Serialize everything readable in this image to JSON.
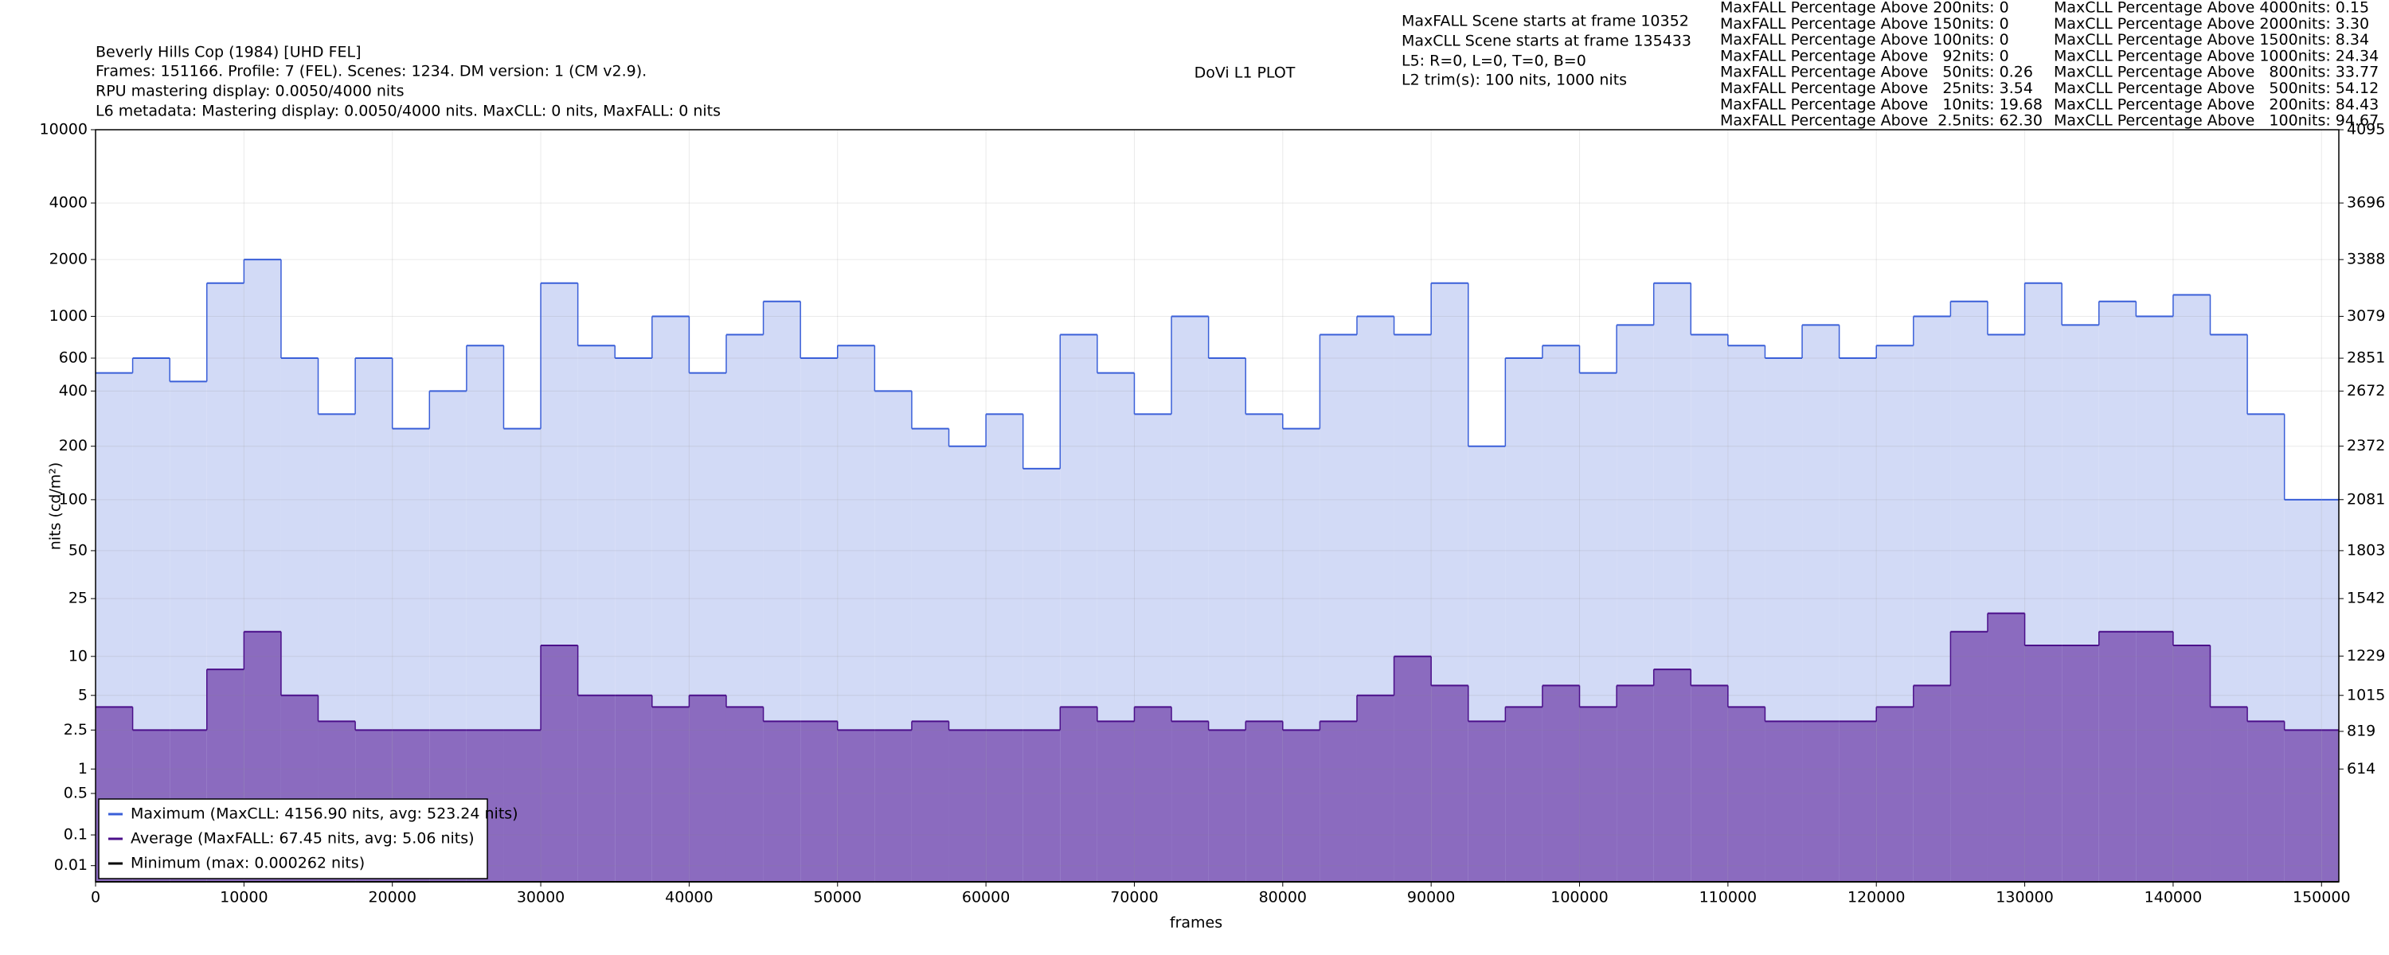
{
  "chart_data": {
    "type": "line",
    "title": "Beverly Hills Cop (1984) [UHD FEL]",
    "header_lines": [
      "Frames: 151166. Profile: 7 (FEL). Scenes: 1234. DM version: 1 (CM v2.9).",
      "RPU mastering display: 0.0050/4000 nits",
      "L6 metadata: Mastering display: 0.0050/4000 nits. MaxCLL: 0 nits, MaxFALL: 0 nits"
    ],
    "plot_label": "DoVi L1 PLOT",
    "scene_info": [
      "MaxFALL Scene starts at frame 10352",
      "MaxCLL Scene starts at frame 135433",
      "L5: R=0, L=0, T=0, B=0",
      "L2 trim(s): 100 nits, 1000 nits"
    ],
    "maxfall_stats": [
      "MaxFALL Percentage Above 200nits: 0",
      "MaxFALL Percentage Above 150nits: 0",
      "MaxFALL Percentage Above 100nits: 0",
      "MaxFALL Percentage Above   92nits: 0",
      "MaxFALL Percentage Above   50nits: 0.26",
      "MaxFALL Percentage Above   25nits: 3.54",
      "MaxFALL Percentage Above   10nits: 19.68",
      "MaxFALL Percentage Above  2.5nits: 62.30"
    ],
    "maxcll_stats": [
      "MaxCLL Percentage Above 4000nits: 0.15",
      "MaxCLL Percentage Above 2000nits: 3.30",
      "MaxCLL Percentage Above 1500nits: 8.34",
      "MaxCLL Percentage Above 1000nits: 24.34",
      "MaxCLL Percentage Above   800nits: 33.77",
      "MaxCLL Percentage Above   500nits: 54.12",
      "MaxCLL Percentage Above   200nits: 84.43",
      "MaxCLL Percentage Above   100nits: 94.67"
    ],
    "xlabel": "frames",
    "ylabel": "nits (cd/m²)",
    "x": [
      0,
      2500,
      5000,
      7500,
      10000,
      12500,
      15000,
      17500,
      20000,
      22500,
      25000,
      27500,
      30000,
      32500,
      35000,
      37500,
      40000,
      42500,
      45000,
      47500,
      50000,
      52500,
      55000,
      57500,
      60000,
      62500,
      65000,
      67500,
      70000,
      72500,
      75000,
      77500,
      80000,
      82500,
      85000,
      87500,
      90000,
      92500,
      95000,
      97500,
      100000,
      102500,
      105000,
      107500,
      110000,
      112500,
      115000,
      117500,
      120000,
      122500,
      125000,
      127500,
      130000,
      132500,
      135000,
      137500,
      140000,
      142500,
      145000,
      147500,
      150000
    ],
    "series": [
      {
        "name": "Maximum (MaxCLL: 4156.90 nits, avg: 523.24 nits)",
        "color": "#3a5fd8",
        "fill": "#d2daf6",
        "values": [
          500,
          600,
          450,
          1500,
          2000,
          600,
          300,
          600,
          250,
          400,
          700,
          250,
          1500,
          700,
          600,
          1000,
          500,
          800,
          1200,
          600,
          700,
          400,
          250,
          200,
          300,
          150,
          800,
          500,
          300,
          1000,
          600,
          300,
          250,
          800,
          1000,
          800,
          1500,
          200,
          600,
          700,
          500,
          900,
          1500,
          800,
          700,
          600,
          900,
          600,
          700,
          1000,
          1200,
          800,
          1500,
          900,
          1200,
          1000,
          1300,
          800,
          300,
          100,
          100
        ]
      },
      {
        "name": "Average (MaxFALL: 67.45 nits, avg: 5.06 nits)",
        "color": "#4b0f8a",
        "fill": "#8b6bbf",
        "values": [
          4,
          2.5,
          2.5,
          8,
          15,
          5,
          3,
          2.5,
          2.5,
          2.5,
          2.5,
          2.5,
          12,
          5,
          5,
          4,
          5,
          4,
          3,
          3,
          2.5,
          2.5,
          3,
          2.5,
          2.5,
          2.5,
          4,
          3,
          4,
          3,
          2.5,
          3,
          2.5,
          3,
          5,
          10,
          6,
          3,
          4,
          6,
          4,
          6,
          8,
          6,
          4,
          3,
          3,
          3,
          4,
          6,
          15,
          20,
          12,
          12,
          15,
          15,
          12,
          4,
          3,
          2.5,
          2.5
        ]
      },
      {
        "name": "Minimum (max: 0.000262 nits)",
        "color": "#000000",
        "fill": "none",
        "values": [
          0,
          0,
          0,
          0,
          0,
          0,
          0,
          0,
          0,
          0,
          0,
          0,
          0,
          0,
          0,
          0,
          0,
          0,
          0,
          0,
          0,
          0,
          0,
          0,
          0,
          0,
          0,
          0,
          0,
          0,
          0,
          0,
          0,
          0,
          0,
          0,
          0,
          0,
          0,
          0,
          0,
          0,
          0,
          0,
          0,
          0,
          0,
          0,
          0,
          0,
          0,
          0,
          0,
          0,
          0,
          0,
          0,
          0,
          0,
          0,
          0
        ]
      }
    ],
    "xlim": [
      0,
      151166
    ],
    "xticks": [
      0,
      10000,
      20000,
      30000,
      40000,
      50000,
      60000,
      70000,
      80000,
      90000,
      100000,
      110000,
      120000,
      130000,
      140000,
      150000
    ],
    "ylim": [
      0,
      10000
    ],
    "yscale": "pq",
    "yticks": [
      0.01,
      0.1,
      0.5,
      1,
      2.5,
      5,
      10,
      25,
      50,
      100,
      200,
      400,
      600,
      1000,
      2000,
      4000,
      10000
    ],
    "y2lim": [
      0,
      4095
    ],
    "y2ticks": [
      614,
      819,
      1015,
      1229,
      1542,
      1803,
      2081,
      2372,
      2672,
      2851,
      3079,
      3388,
      3696,
      4095
    ],
    "grid": true,
    "legend": "lower left"
  }
}
